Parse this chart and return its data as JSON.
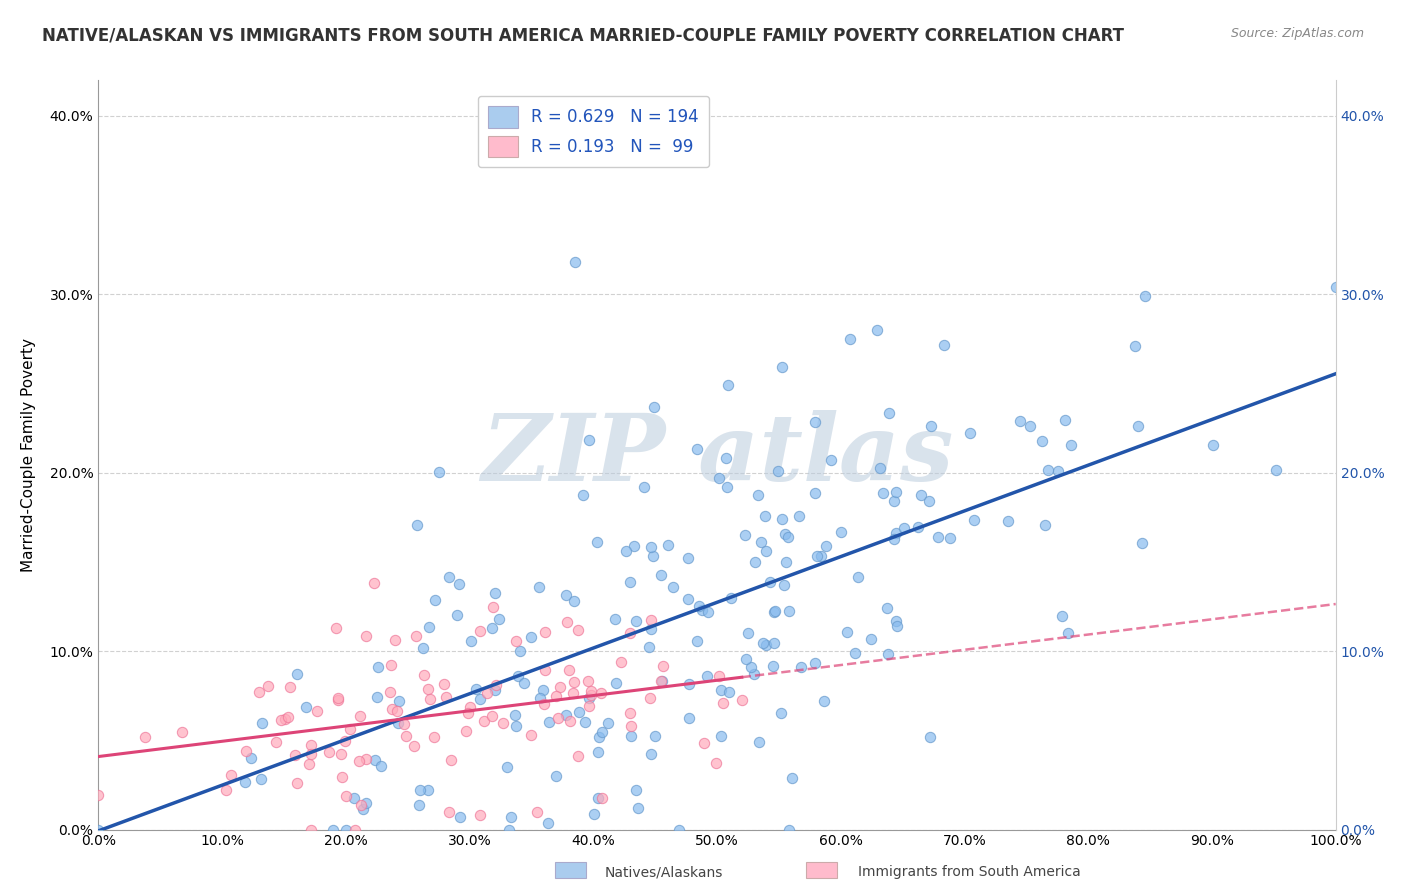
{
  "title": "NATIVE/ALASKAN VS IMMIGRANTS FROM SOUTH AMERICA MARRIED-COUPLE FAMILY POVERTY CORRELATION CHART",
  "source": "Source: ZipAtlas.com",
  "ylabel": "Married-Couple Family Poverty",
  "xlim": [
    0,
    1
  ],
  "ylim": [
    0,
    0.42
  ],
  "xticks": [
    0.0,
    0.1,
    0.2,
    0.3,
    0.4,
    0.5,
    0.6,
    0.7,
    0.8,
    0.9,
    1.0
  ],
  "yticks": [
    0.0,
    0.1,
    0.2,
    0.3,
    0.4
  ],
  "series1": {
    "name": "Natives/Alaskans",
    "R": 0.629,
    "N": 194,
    "marker_color": "#88BBEE",
    "marker_edge": "#6699CC",
    "trend_color": "#2255AA"
  },
  "series2": {
    "name": "Immigrants from South America",
    "R": 0.193,
    "N": 99,
    "marker_color": "#FFAABB",
    "marker_edge": "#EE7799",
    "trend_color": "#DD4477"
  },
  "legend_blue_fill": "#AACCEE",
  "legend_pink_fill": "#FFBBCC",
  "watermark": "ZIP atlas",
  "watermark_color": "#BBCCDD",
  "background_color": "#FFFFFF",
  "grid_color": "#CCCCCC",
  "seed1": 42,
  "seed2": 123,
  "title_fontsize": 12,
  "axis_label_fontsize": 11,
  "tick_fontsize": 10,
  "legend_fontsize": 12
}
